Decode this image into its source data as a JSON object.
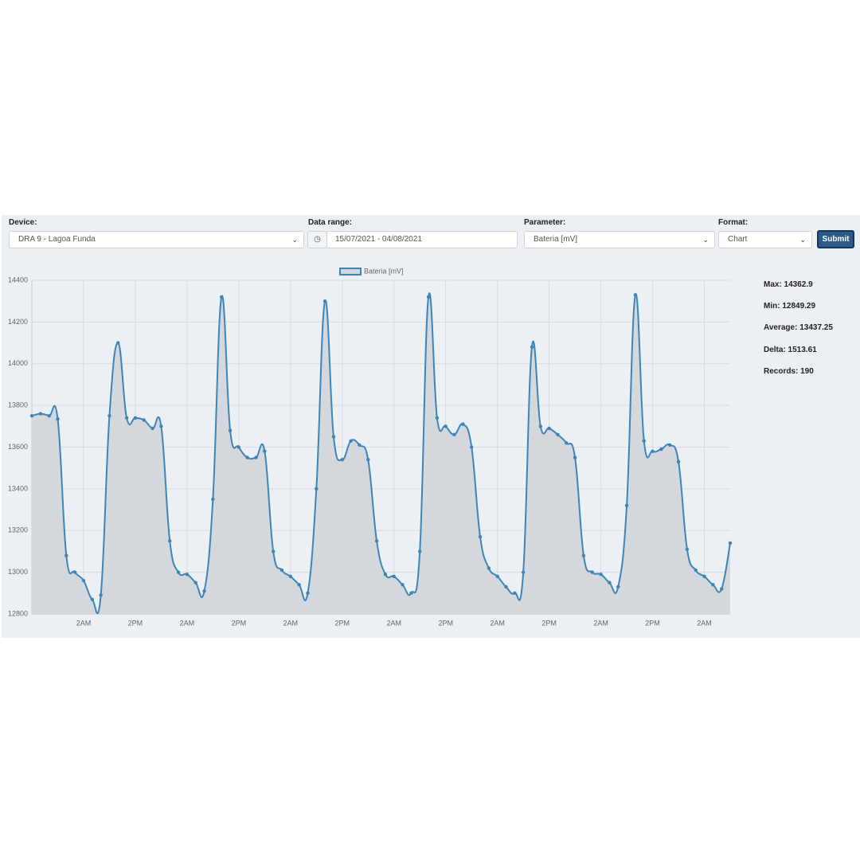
{
  "form": {
    "device": {
      "label": "Device:",
      "value": "DRA 9 - Lagoa Funda"
    },
    "range": {
      "label": "Data range:",
      "value": "15/07/2021 - 04/08/2021"
    },
    "parameter": {
      "label": "Parameter:",
      "value": "Bateria [mV]"
    },
    "format": {
      "label": "Format:",
      "value": "Chart"
    },
    "submit": "Submit"
  },
  "chart_data": {
    "type": "line",
    "series": [
      {
        "name": "Bateria [mV]",
        "color": "#3d85b8",
        "fill": "#d2d5da",
        "values": [
          13750,
          13760,
          13750,
          13735,
          13080,
          13000,
          12960,
          12870,
          12890,
          13750,
          14100,
          13740,
          13740,
          13730,
          13690,
          13700,
          13150,
          13000,
          12990,
          12950,
          12910,
          13350,
          14320,
          13680,
          13600,
          13550,
          13550,
          13580,
          13100,
          13010,
          12980,
          12940,
          12900,
          13400,
          14300,
          13650,
          13540,
          13630,
          13610,
          13540,
          13150,
          12990,
          12980,
          12940,
          12900,
          13100,
          14320,
          13740,
          13700,
          13660,
          13710,
          13600,
          13170,
          13020,
          12980,
          12930,
          12900,
          13000,
          14080,
          13700,
          13690,
          13660,
          13620,
          13550,
          13080,
          13000,
          12990,
          12950,
          12930,
          13320,
          14330,
          13630,
          13580,
          13590,
          13610,
          13530,
          13110,
          13010,
          12980,
          12940,
          12920,
          13140
        ]
      }
    ],
    "xlim": [
      0,
      81
    ],
    "xticks": [
      {
        "value": 6,
        "label": "2AM"
      },
      {
        "value": 12,
        "label": "2PM"
      },
      {
        "value": 18,
        "label": "2AM"
      },
      {
        "value": 24,
        "label": "2PM"
      },
      {
        "value": 30,
        "label": "2AM"
      },
      {
        "value": 36,
        "label": "2PM"
      },
      {
        "value": 42,
        "label": "2AM"
      },
      {
        "value": 48,
        "label": "2PM"
      },
      {
        "value": 54,
        "label": "2AM"
      },
      {
        "value": 60,
        "label": "2PM"
      },
      {
        "value": 66,
        "label": "2AM"
      },
      {
        "value": 72,
        "label": "2PM"
      },
      {
        "value": 78,
        "label": "2AM"
      }
    ],
    "ylim": [
      12800,
      14400
    ],
    "yticks": [
      12800,
      13000,
      13200,
      13400,
      13600,
      13800,
      14000,
      14200,
      14400
    ],
    "grid": true
  },
  "stats": [
    "Max: 14362.9",
    "Min: 12849.29",
    "Average: 13437.25",
    "Delta: 1513.61",
    "Records: 190"
  ]
}
